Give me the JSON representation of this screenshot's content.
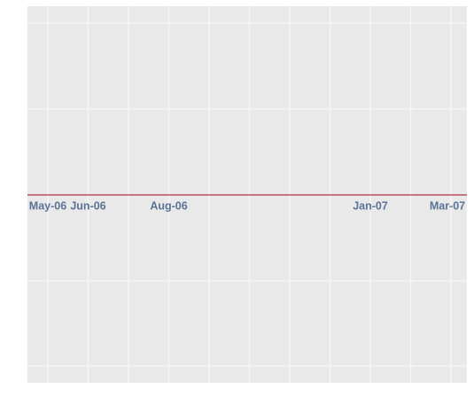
{
  "chart_data": {
    "type": "line",
    "categories": [
      "May-06",
      "Jun-06",
      null,
      "Aug-06",
      null,
      null,
      null,
      null,
      "Jan-07",
      null,
      "Mar-07"
    ],
    "grid": true,
    "axis_color": "#b0303a"
  }
}
